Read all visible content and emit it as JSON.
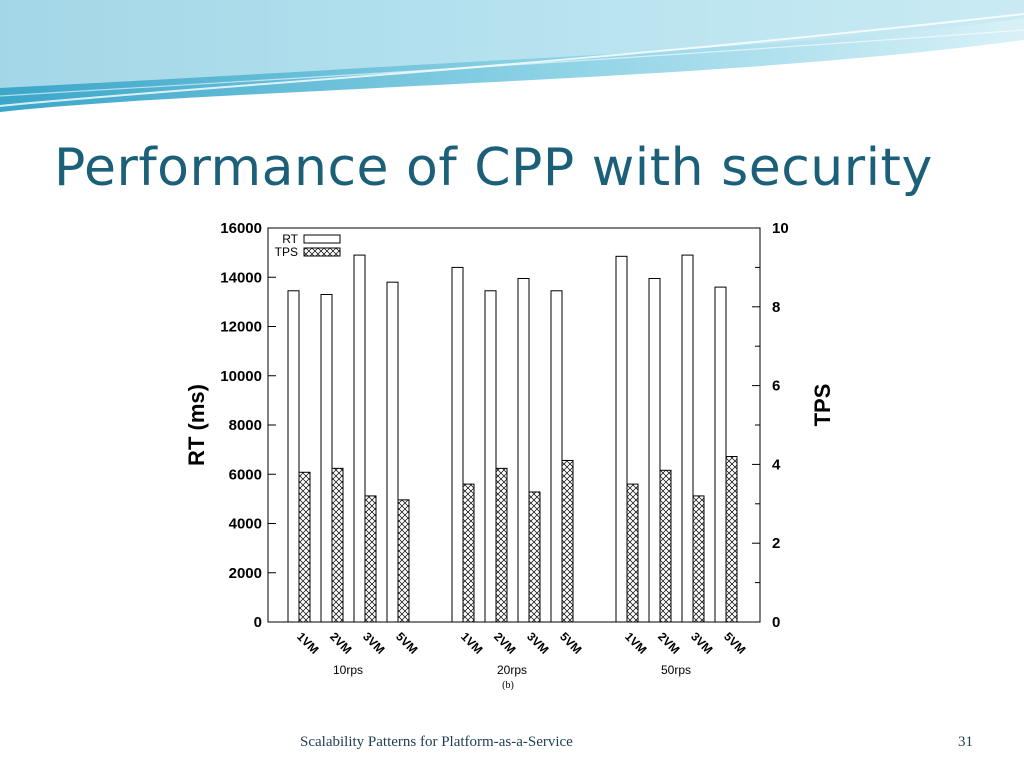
{
  "slide": {
    "title": "Performance of CPP with security",
    "footer": "Scalability Patterns for Platform-as-a-Service",
    "page_number": "31"
  },
  "colors": {
    "title": "#1b5f78",
    "wave_dark": "#3aa6c9",
    "wave_light": "#aee0ee",
    "axis": "#000000"
  },
  "chart_data": {
    "type": "bar",
    "groups": [
      "10rps",
      "20rps",
      "50rps"
    ],
    "categories": [
      "1VM",
      "2VM",
      "3VM",
      "5VM"
    ],
    "caption": "(b)",
    "ylabel": "RT (ms)",
    "y2label": "TPS",
    "ylim": [
      0,
      16000
    ],
    "y2lim": [
      0,
      10
    ],
    "yticks": [
      0,
      2000,
      4000,
      6000,
      8000,
      10000,
      12000,
      14000,
      16000
    ],
    "y2ticks": [
      0,
      2,
      4,
      6,
      8,
      10
    ],
    "legend": {
      "position": "top-left",
      "entries": [
        "RT",
        "TPS"
      ]
    },
    "grid": false,
    "series": [
      {
        "name": "RT",
        "axis": "left",
        "pattern": "white",
        "values": [
          [
            13450,
            13300,
            14900,
            13800
          ],
          [
            14400,
            13450,
            13950,
            13450
          ],
          [
            14850,
            13950,
            14900,
            13600
          ]
        ]
      },
      {
        "name": "TPS",
        "axis": "right",
        "pattern": "crosshatch",
        "values": [
          [
            3.8,
            3.9,
            3.2,
            3.1
          ],
          [
            3.5,
            3.9,
            3.3,
            4.1
          ],
          [
            3.5,
            3.85,
            3.2,
            4.2
          ]
        ]
      }
    ]
  }
}
